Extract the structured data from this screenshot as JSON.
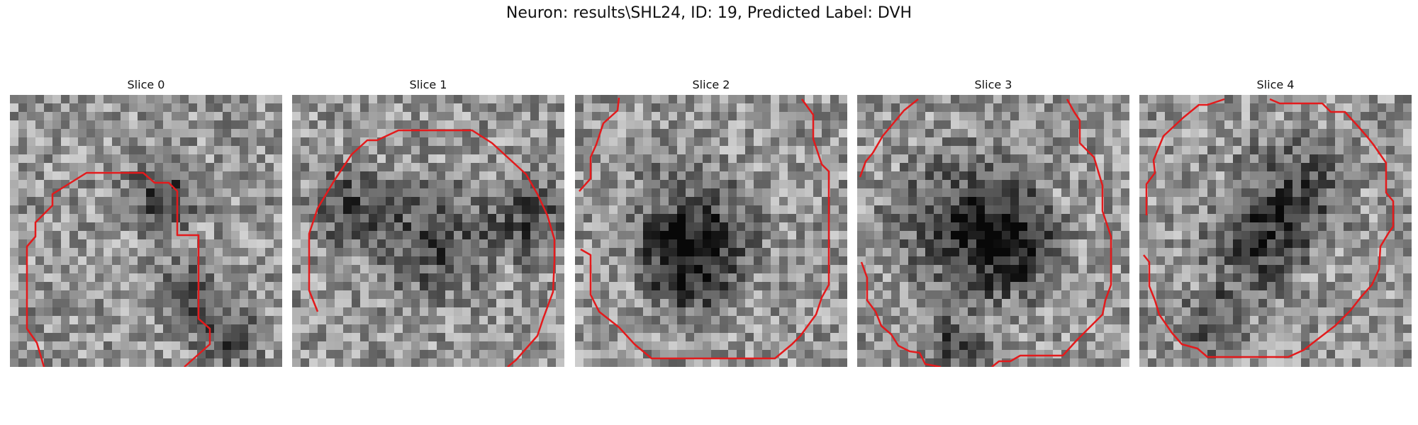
{
  "title": "Neuron: results\\SHL24, ID: 19, Predicted Label: DVH",
  "slices": [
    {
      "label": "Slice 0"
    },
    {
      "label": "Slice 1"
    },
    {
      "label": "Slice 2"
    },
    {
      "label": "Slice 3"
    },
    {
      "label": "Slice 4"
    }
  ],
  "contour_color": "#e31a1c",
  "colormap": "grayscale"
}
